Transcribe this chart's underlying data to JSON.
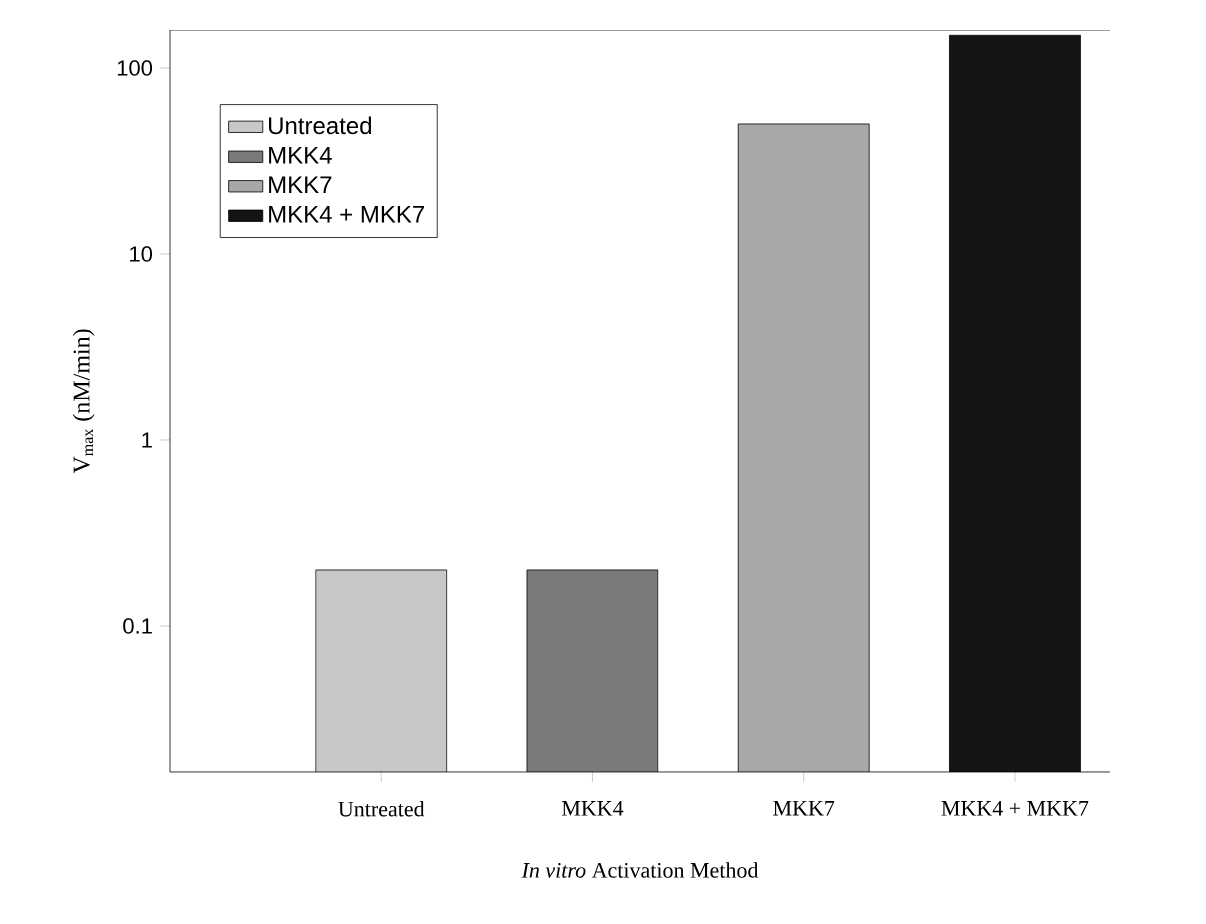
{
  "chart_data": {
    "type": "bar",
    "xlabel": "*In vitro* Activation Method",
    "ylabel": "V$_{max}$ (nM/min)",
    "categories": [
      "Untreated",
      "MKK4",
      "MKK7",
      "MKK4 + MKK7"
    ],
    "series": [
      {
        "name": "Untreated",
        "color": "#c8c8c8",
        "values": [
          0.2,
          null,
          null,
          null
        ]
      },
      {
        "name": "MKK4",
        "color": "#7a7a7a",
        "values": [
          null,
          0.2,
          null,
          null
        ]
      },
      {
        "name": "MKK7",
        "color": "#a8a8a8",
        "values": [
          null,
          null,
          50,
          null
        ]
      },
      {
        "name": "MKK4 + MKK7",
        "color": "#141414",
        "values": [
          null,
          null,
          null,
          150
        ]
      }
    ],
    "log": "y",
    "ylim": [
      0.0164,
      160
    ],
    "yticks": [
      0.1,
      1,
      10,
      100
    ],
    "legend": "top left",
    "grid": false
  }
}
